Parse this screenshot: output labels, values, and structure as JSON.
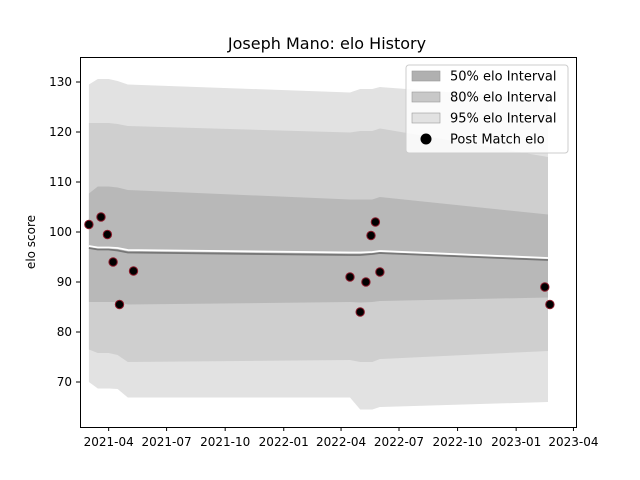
{
  "chart_data": {
    "type": "line",
    "title": "Joseph Mano: elo History",
    "xlabel": "",
    "ylabel": "elo score",
    "x_ticks": [
      "2021-04",
      "2021-07",
      "2021-10",
      "2022-01",
      "2022-04",
      "2022-07",
      "2022-10",
      "2023-01",
      "2023-04"
    ],
    "y_ticks": [
      70,
      80,
      90,
      100,
      110,
      120,
      130
    ],
    "xlim": [
      "2021-02-15",
      "2023-04-05"
    ],
    "ylim": [
      61,
      135
    ],
    "grid": false,
    "legend_position": "top-right",
    "legend": [
      {
        "label": "50% elo Interval",
        "kind": "band",
        "color": "#b0b0b0"
      },
      {
        "label": "80% elo Interval",
        "kind": "band",
        "color": "#c8c8c8"
      },
      {
        "label": "95% elo Interval",
        "kind": "band",
        "color": "#e2e2e2"
      },
      {
        "label": "Post Match elo",
        "kind": "marker",
        "color": "#000000"
      }
    ],
    "rating_line": {
      "dates": [
        "2021-03-01",
        "2021-03-15",
        "2021-04-01",
        "2021-04-15",
        "2021-05-01",
        "2022-04-15",
        "2022-05-01",
        "2022-05-20",
        "2022-06-01",
        "2023-02-20"
      ],
      "values": [
        97.2,
        96.9,
        96.9,
        96.8,
        96.4,
        95.9,
        95.9,
        96.0,
        96.2,
        94.8
      ],
      "color": "#ffffff"
    },
    "mean_line": {
      "dates": [
        "2021-03-01",
        "2021-03-15",
        "2021-04-01",
        "2021-04-15",
        "2021-05-01",
        "2022-04-15",
        "2022-05-01",
        "2022-05-20",
        "2022-06-01",
        "2023-02-20"
      ],
      "values": [
        96.8,
        96.5,
        96.5,
        96.3,
        95.9,
        95.4,
        95.4,
        95.6,
        95.8,
        94.4
      ],
      "color": "#777777"
    },
    "bands": [
      {
        "name": "95% elo Interval",
        "color": "#e2e2e2",
        "dates": [
          "2021-03-01",
          "2021-03-15",
          "2021-04-01",
          "2021-04-15",
          "2021-05-01",
          "2022-04-15",
          "2022-05-01",
          "2022-05-20",
          "2022-06-01",
          "2023-02-20"
        ],
        "upper": [
          129.5,
          130.6,
          130.6,
          130.2,
          129.5,
          127.9,
          128.6,
          128.6,
          129.0,
          126.5
        ],
        "lower": [
          70.0,
          68.7,
          68.7,
          68.6,
          66.9,
          66.9,
          64.5,
          64.5,
          65.0,
          66.0
        ]
      },
      {
        "name": "80% elo Interval",
        "color": "#c8c8c8",
        "dates": [
          "2021-03-01",
          "2021-03-15",
          "2021-04-01",
          "2021-04-15",
          "2021-05-01",
          "2022-04-15",
          "2022-05-01",
          "2022-05-20",
          "2022-06-01",
          "2023-02-20"
        ],
        "upper": [
          121.8,
          121.8,
          121.8,
          121.6,
          121.2,
          119.9,
          120.2,
          120.2,
          120.7,
          115.0
        ],
        "lower": [
          76.5,
          75.8,
          75.8,
          75.4,
          74.0,
          74.4,
          74.0,
          74.0,
          74.6,
          76.2
        ]
      },
      {
        "name": "50% elo Interval",
        "color": "#b0b0b0",
        "dates": [
          "2021-03-01",
          "2021-03-15",
          "2021-04-01",
          "2021-04-15",
          "2021-05-01",
          "2022-04-15",
          "2022-05-01",
          "2022-05-20",
          "2022-06-01",
          "2023-02-20"
        ],
        "upper": [
          107.7,
          109.1,
          109.1,
          108.9,
          108.4,
          106.5,
          106.5,
          106.5,
          107.0,
          103.5
        ],
        "lower": [
          86.0,
          86.0,
          86.0,
          86.0,
          85.5,
          86.0,
          85.9,
          86.0,
          86.2,
          86.9
        ]
      }
    ],
    "points": {
      "name": "Post Match elo",
      "color": "#000000",
      "edge_color": "#8b1a2b",
      "dates": [
        "2021-03-01",
        "2021-03-20",
        "2021-03-30",
        "2021-04-08",
        "2021-04-18",
        "2021-05-10",
        "2022-04-15",
        "2022-05-01",
        "2022-05-10",
        "2022-05-18",
        "2022-05-25",
        "2022-06-01",
        "2023-02-15",
        "2023-02-23"
      ],
      "values": [
        101.5,
        103.0,
        99.5,
        94.0,
        85.5,
        92.2,
        91.0,
        84.0,
        90.0,
        99.3,
        102.0,
        92.0,
        89.0,
        85.5
      ]
    }
  }
}
